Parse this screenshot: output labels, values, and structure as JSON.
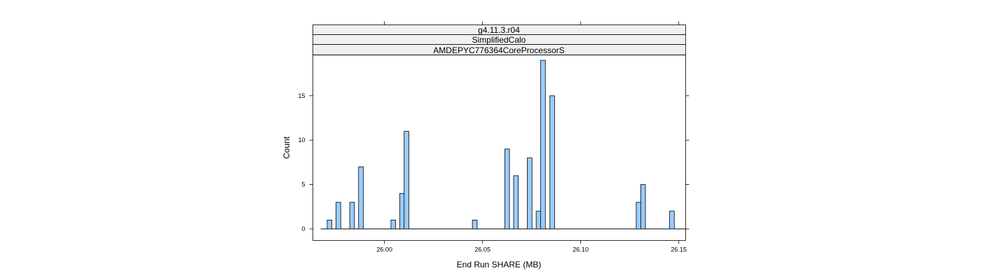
{
  "chart_data": {
    "type": "bar",
    "strips": [
      "g4.11.3.r04",
      "SimplifiedCalo",
      "AMDEPYC776364CoreProcessorS"
    ],
    "xlabel": "End Run SHARE (MB)",
    "ylabel": "Count",
    "xlim": [
      25.9635,
      26.1535
    ],
    "ylim": [
      -1.3,
      19.6
    ],
    "x_ticks": [
      26.0,
      26.05,
      26.1,
      26.15
    ],
    "x_tick_labels": [
      "26.00",
      "26.05",
      "26.10",
      "26.15"
    ],
    "y_ticks": [
      0,
      5,
      10,
      15
    ],
    "y_tick_labels": [
      "0",
      "5",
      "10",
      "15"
    ],
    "bin_width": 0.0024,
    "baseline_range": [
      25.9675,
      26.1535
    ],
    "bins": [
      {
        "x": 25.972,
        "count": 1
      },
      {
        "x": 25.9765,
        "count": 3
      },
      {
        "x": 25.9835,
        "count": 3
      },
      {
        "x": 25.988,
        "count": 7
      },
      {
        "x": 26.0045,
        "count": 1
      },
      {
        "x": 26.009,
        "count": 4
      },
      {
        "x": 26.0112,
        "count": 11
      },
      {
        "x": 26.046,
        "count": 1
      },
      {
        "x": 26.0625,
        "count": 9
      },
      {
        "x": 26.067,
        "count": 6
      },
      {
        "x": 26.074,
        "count": 8
      },
      {
        "x": 26.0785,
        "count": 2
      },
      {
        "x": 26.0808,
        "count": 19
      },
      {
        "x": 26.0855,
        "count": 15
      },
      {
        "x": 26.1295,
        "count": 3
      },
      {
        "x": 26.1318,
        "count": 5
      },
      {
        "x": 26.1465,
        "count": 2
      }
    ],
    "bar_color": "#99ccff",
    "bar_edge_color": "#000000",
    "strip_color": "#f0f0f0",
    "grid": false
  }
}
